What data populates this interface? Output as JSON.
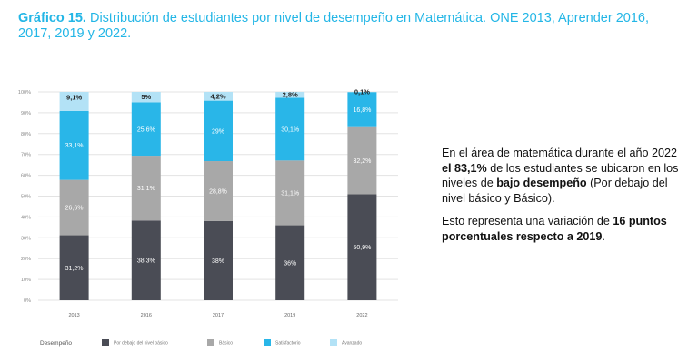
{
  "title": {
    "prefix": "Gráfico 15.",
    "text": "Distribución de estudiantes por nivel de desempeño en Matemática. ONE 2013, Aprender 2016, 2017, 2019 y 2022."
  },
  "colors": {
    "title": "#23b6e6",
    "series": [
      "#4a4c55",
      "#a8a8a8",
      "#29b6e8",
      "#b3e2f6"
    ]
  },
  "chart_data": {
    "type": "bar",
    "stacked": true,
    "categories": [
      "2013",
      "2016",
      "2017",
      "2019",
      "2022"
    ],
    "series": [
      {
        "name": "Por debajo del nivel básico",
        "values": [
          31.2,
          38.3,
          38,
          36,
          50.9
        ],
        "labels": [
          "31,2%",
          "38,3%",
          "38%",
          "36%",
          "50,9%"
        ]
      },
      {
        "name": "Básico",
        "values": [
          26.6,
          31.1,
          28.8,
          31.1,
          32.2
        ],
        "labels": [
          "26,6%",
          "31,1%",
          "28,8%",
          "31,1%",
          "32,2%"
        ]
      },
      {
        "name": "Satisfactorio",
        "values": [
          33.1,
          25.6,
          29,
          30.1,
          16.8
        ],
        "labels": [
          "33,1%",
          "25,6%",
          "29%",
          "30,1%",
          "16,8%"
        ]
      },
      {
        "name": "Avanzado",
        "values": [
          9.1,
          5,
          4.2,
          2.8,
          0.1
        ],
        "labels": [
          "9,1%",
          "5%",
          "4,2%",
          "2,8%",
          "0,1%"
        ]
      }
    ],
    "ylim": [
      0,
      100
    ],
    "yticks": [
      "0%",
      "10%",
      "20%",
      "30%",
      "40%",
      "50%",
      "60%",
      "70%",
      "80%",
      "90%",
      "100%"
    ],
    "legend_title": "Desempeño",
    "legend_position": "bottom",
    "grid": true
  },
  "side": {
    "p1_a": "En el área de matemática durante el año 2022 ",
    "p1_b": "el 83,1%",
    "p1_c": " de los estudiantes se ubicaron en los niveles de ",
    "p1_d": "bajo desempeño",
    "p1_e": " (Por debajo del nivel básico y Básico).",
    "p2_a": "Esto representa una variación de ",
    "p2_b": "16 puntos porcentuales respecto a 2019",
    "p2_c": "."
  }
}
